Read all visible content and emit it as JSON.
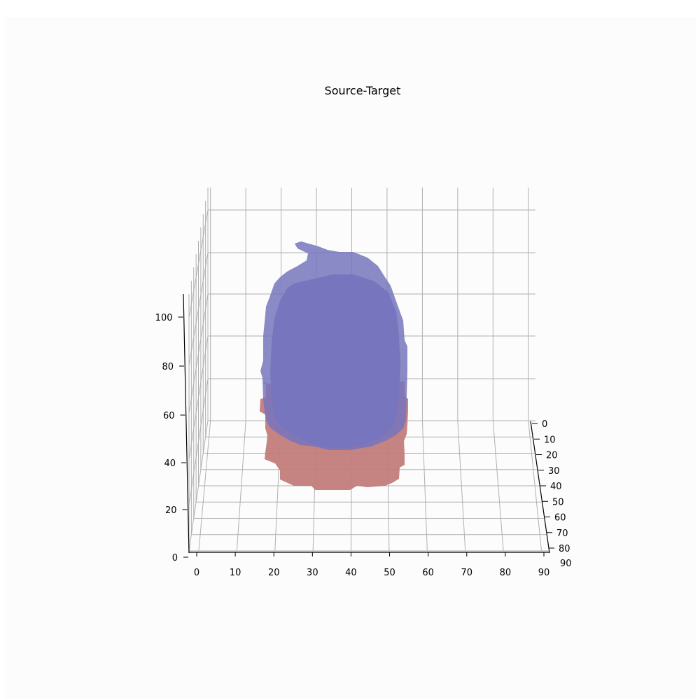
{
  "chart_data": {
    "type": "3d-voxel",
    "title": "Source-Target",
    "xlim": [
      0,
      90
    ],
    "ylim": [
      0,
      80
    ],
    "zlim": [
      0,
      110
    ],
    "x_ticks": [
      "0",
      "10",
      "20",
      "30",
      "40",
      "50",
      "60",
      "70",
      "80",
      "90"
    ],
    "y_ticks": [
      "0",
      "10",
      "20",
      "30",
      "40",
      "50",
      "60",
      "70",
      "80"
    ],
    "z_ticks": [
      "0",
      "20",
      "40",
      "60",
      "80",
      "100"
    ],
    "grid": true,
    "series": [
      {
        "color": "#7675bd"
      },
      {
        "color": "#c27c7b"
      }
    ]
  }
}
